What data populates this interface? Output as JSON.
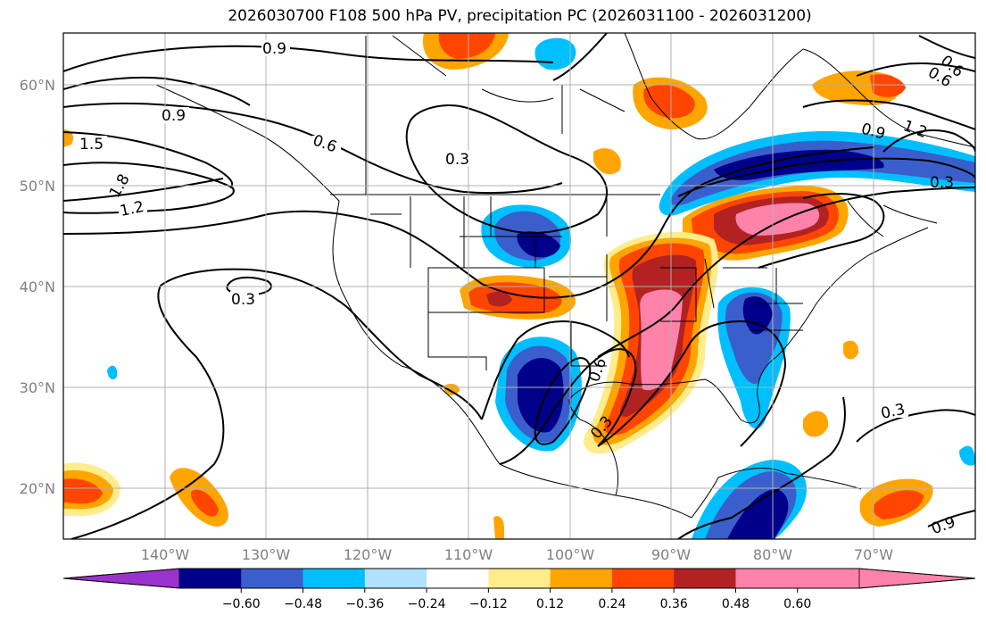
{
  "title": "2026030700 F108 500 hPa PV, precipitation PC (2026031100 - 2026031200)",
  "lat_labels": [
    "60°N",
    "50°N",
    "40°N",
    "30°N",
    "20°N"
  ],
  "lon_labels": [
    "140°W",
    "130°W",
    "120°W",
    "110°W",
    "100°W",
    "90°W",
    "80°W",
    "70°W"
  ],
  "contour_labels": [
    "0.9",
    "0.9",
    "1.5",
    "1.8",
    "1.2",
    "0.6",
    "0.3",
    "0.3",
    "0.6",
    "0.6",
    "0.9",
    "1.2",
    "0.3",
    "0.3",
    "0.3",
    "0.6",
    "0.9"
  ],
  "colorbar": {
    "ticks": [
      "−0.60",
      "−0.48",
      "−0.36",
      "−0.24",
      "−0.12",
      "0.12",
      "0.24",
      "0.36",
      "0.48",
      "0.60"
    ],
    "colors": [
      "#9a32cd",
      "#00008b",
      "#3a5fcd",
      "#00bfff",
      "#b0e2ff",
      "#ffffff",
      "#ffec8b",
      "#ffa500",
      "#ff4500",
      "#b22222",
      "#ff82ab",
      "#ff82ab"
    ]
  }
}
